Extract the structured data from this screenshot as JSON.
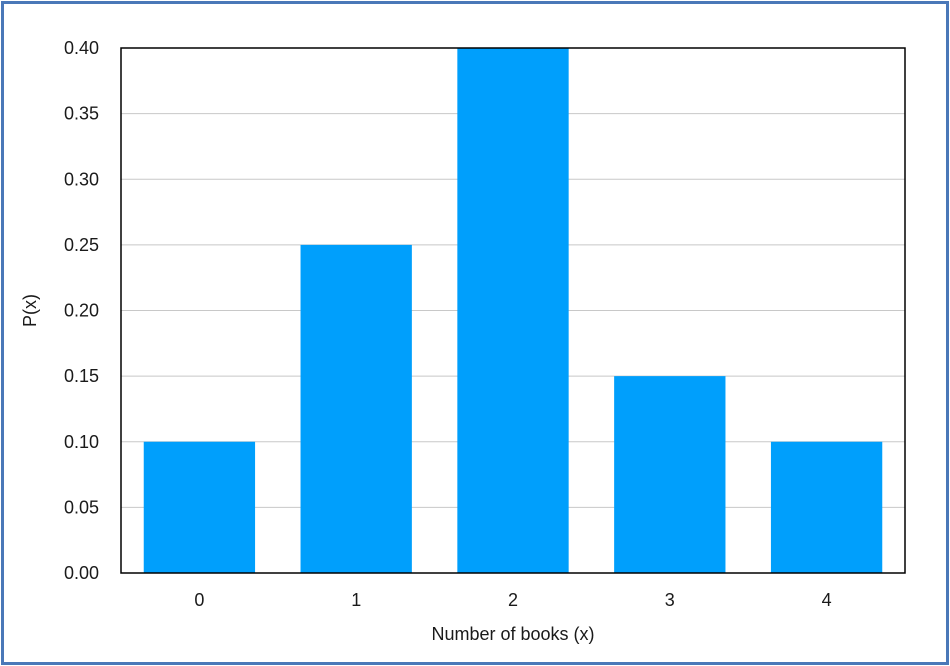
{
  "chart_data": {
    "type": "bar",
    "categories": [
      "0",
      "1",
      "2",
      "3",
      "4"
    ],
    "values": [
      0.1,
      0.25,
      0.4,
      0.15,
      0.1
    ],
    "xlabel": "Number of books (x)",
    "ylabel": "P(x)",
    "ylim": [
      0,
      0.4
    ],
    "yticks": [
      "0.00",
      "0.05",
      "0.10",
      "0.15",
      "0.20",
      "0.25",
      "0.30",
      "0.35",
      "0.40"
    ],
    "grid": true,
    "legend": "none",
    "bar_color": "#009ffc",
    "frame_color": "#4a78b8"
  }
}
